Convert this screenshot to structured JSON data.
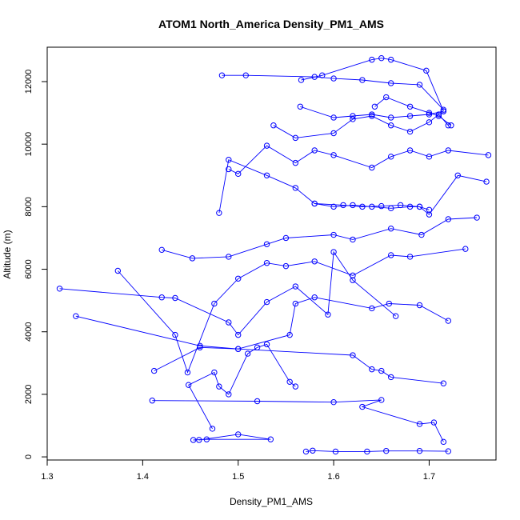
{
  "chart_data": {
    "type": "line",
    "title": "ATOM1 North_America Density_PM1_AMS",
    "xlabel": "Density_PM1_AMS",
    "ylabel": "Altitude (m)",
    "xlim": [
      1.3,
      1.77
    ],
    "ylim": [
      -100,
      13100
    ],
    "xticks": [
      1.3,
      1.4,
      1.5,
      1.6,
      1.7
    ],
    "xtick_labels": [
      "1.3",
      "1.4",
      "1.5",
      "1.6",
      "1.7"
    ],
    "yticks": [
      0,
      2000,
      4000,
      6000,
      8000,
      10000,
      12000
    ],
    "ytick_labels": [
      "0",
      "2000",
      "4000",
      "6000",
      "8000",
      "10000",
      "12000"
    ],
    "grid": false,
    "marker": "open-circle",
    "color": "#0000ff",
    "series": [
      {
        "x": [
          1.571,
          1.578,
          1.602,
          1.635,
          1.655,
          1.69,
          1.72
        ],
        "y": [
          170,
          200,
          170,
          170,
          190,
          190,
          180
        ]
      },
      {
        "x": [
          1.453,
          1.467,
          1.534,
          1.5,
          1.459
        ],
        "y": [
          540,
          560,
          560,
          720,
          540
        ]
      },
      {
        "x": [
          1.41,
          1.52,
          1.6,
          1.65,
          1.63,
          1.69,
          1.705,
          1.715
        ],
        "y": [
          1800,
          1780,
          1750,
          1820,
          1600,
          1050,
          1100,
          480
        ]
      },
      {
        "x": [
          1.473,
          1.448,
          1.475,
          1.48,
          1.49,
          1.51,
          1.52,
          1.53,
          1.554,
          1.56
        ],
        "y": [
          900,
          2300,
          2700,
          2250,
          2000,
          3300,
          3500,
          3600,
          2400,
          2250
        ]
      },
      {
        "x": [
          1.412,
          1.46,
          1.5,
          1.62,
          1.64,
          1.65,
          1.66,
          1.715
        ],
        "y": [
          2750,
          3500,
          3450,
          3250,
          2800,
          2750,
          2550,
          2350
        ]
      },
      {
        "x": [
          1.33,
          1.46,
          1.5,
          1.554,
          1.56,
          1.58,
          1.64,
          1.658,
          1.69,
          1.72
        ],
        "y": [
          4500,
          3550,
          3450,
          3900,
          4900,
          5100,
          4750,
          4900,
          4850,
          4350
        ]
      },
      {
        "x": [
          1.313,
          1.42,
          1.434,
          1.49,
          1.5,
          1.53,
          1.56,
          1.594,
          1.6,
          1.62,
          1.665
        ],
        "y": [
          5380,
          5100,
          5080,
          4300,
          3900,
          4950,
          5450,
          4550,
          6550,
          5650,
          4500
        ]
      },
      {
        "x": [
          1.374,
          1.434,
          1.447,
          1.475,
          1.5,
          1.53,
          1.55,
          1.58,
          1.62,
          1.66,
          1.68,
          1.738
        ],
        "y": [
          5950,
          3900,
          2700,
          4900,
          5700,
          6200,
          6100,
          6250,
          5800,
          6450,
          6400,
          6650
        ]
      },
      {
        "x": [
          1.42,
          1.452,
          1.49,
          1.53,
          1.55,
          1.6,
          1.62,
          1.66,
          1.692,
          1.72,
          1.75
        ],
        "y": [
          6620,
          6350,
          6400,
          6800,
          7000,
          7100,
          6950,
          7300,
          7100,
          7600,
          7650
        ]
      },
      {
        "x": [
          1.48,
          1.49,
          1.53,
          1.56,
          1.58,
          1.6,
          1.62,
          1.64,
          1.66,
          1.68,
          1.69,
          1.7
        ],
        "y": [
          7800,
          9500,
          9000,
          8600,
          8100,
          8000,
          8050,
          8000,
          7950,
          8000,
          8000,
          7900
        ]
      },
      {
        "x": [
          1.58,
          1.61,
          1.63,
          1.65,
          1.67,
          1.69,
          1.7,
          1.73,
          1.76
        ],
        "y": [
          8100,
          8050,
          8000,
          8020,
          8050,
          8000,
          7750,
          9000,
          8800
        ]
      },
      {
        "x": [
          1.49,
          1.5,
          1.53,
          1.56,
          1.58,
          1.6,
          1.64,
          1.66,
          1.68,
          1.7,
          1.72,
          1.762
        ],
        "y": [
          9200,
          9050,
          9950,
          9400,
          9800,
          9650,
          9250,
          9600,
          9800,
          9600,
          9800,
          9650
        ]
      },
      {
        "x": [
          1.537,
          1.56,
          1.6,
          1.62,
          1.64,
          1.66,
          1.68,
          1.7,
          1.71,
          1.72
        ],
        "y": [
          10600,
          10200,
          10350,
          10800,
          10900,
          10600,
          10400,
          10700,
          10950,
          10600
        ]
      },
      {
        "x": [
          1.565,
          1.6,
          1.62,
          1.64,
          1.66,
          1.68,
          1.7,
          1.715
        ],
        "y": [
          11200,
          10850,
          10900,
          10950,
          10850,
          10900,
          10950,
          11050
        ]
      },
      {
        "x": [
          1.483,
          1.508,
          1.58,
          1.6,
          1.63,
          1.66,
          1.69,
          1.715
        ],
        "y": [
          12200,
          12200,
          12150,
          12100,
          12050,
          11950,
          11900,
          11100
        ]
      },
      {
        "x": [
          1.566,
          1.588,
          1.64,
          1.65,
          1.66,
          1.697,
          1.715
        ],
        "y": [
          12050,
          12200,
          12700,
          12750,
          12700,
          12350,
          11050
        ]
      },
      {
        "x": [
          1.643,
          1.655,
          1.68,
          1.7,
          1.71,
          1.723
        ],
        "y": [
          11200,
          11500,
          11200,
          11000,
          10900,
          10600
        ]
      }
    ]
  }
}
